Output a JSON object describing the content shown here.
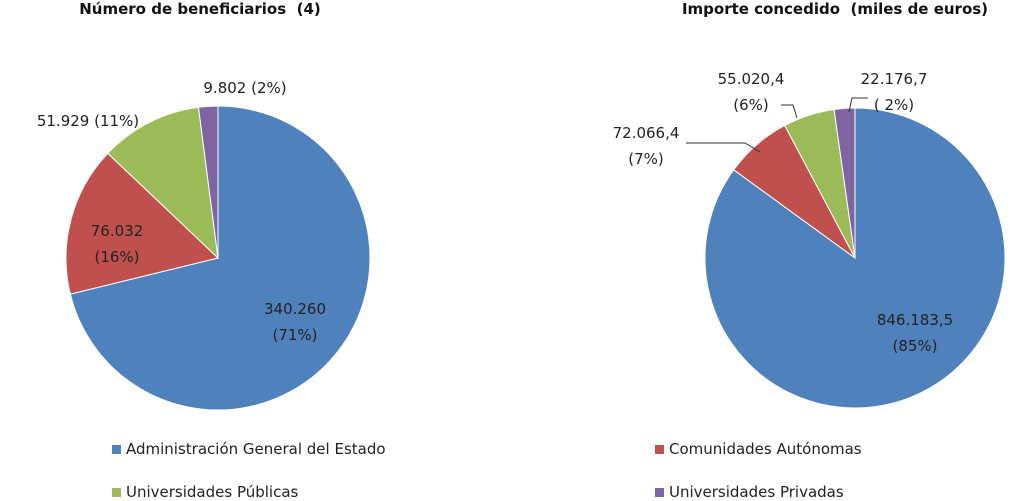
{
  "chart_data": [
    {
      "type": "pie",
      "title": "Número de beneficiarios  (4)",
      "categories": [
        "Administración General del Estado",
        "Comunidades Autónomas",
        "Universidades Públicas",
        "Universidades Privadas"
      ],
      "colors": [
        "#4f81bd",
        "#c0504d",
        "#9bbb59",
        "#8064a2"
      ],
      "values": [
        340260,
        76032,
        51929,
        9802
      ],
      "value_labels": [
        "340.260\n(71%)",
        "76.032\n(16%)",
        "51.929 (11%)",
        "9.802 (2%)"
      ]
    },
    {
      "type": "pie",
      "title": "Importe concedido  (miles de euros)",
      "categories": [
        "Administración General del Estado",
        "Comunidades Autónomas",
        "Universidades Públicas",
        "Universidades Privadas"
      ],
      "colors": [
        "#4f81bd",
        "#c0504d",
        "#9bbb59",
        "#8064a2"
      ],
      "values": [
        846183.5,
        72066.4,
        55020.4,
        22176.7
      ],
      "value_labels": [
        "846.183,5\n(85%)",
        "72.066,4\n(7%)",
        "55.020,4\n(6%)",
        "22.176,7\n( 2%)"
      ]
    }
  ]
}
